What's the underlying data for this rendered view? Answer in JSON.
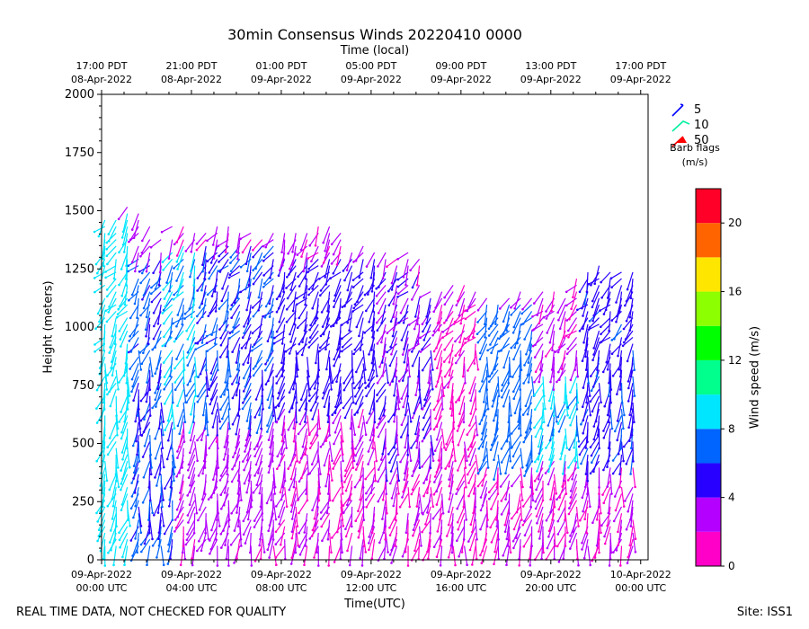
{
  "chart_data": {
    "type": "wind_barb_time_height",
    "title": "30min Consensus Winds 20220410 0000",
    "top_axis_label": "Time (local)",
    "xlabel": "Time(UTC)",
    "ylabel": "Height (meters)",
    "ylim": [
      0,
      2000
    ],
    "yticks": [
      0,
      250,
      500,
      750,
      1000,
      1250,
      1500,
      1750,
      2000
    ],
    "x_range_hours_utc": [
      0,
      24.33
    ],
    "bottom_ticks": [
      {
        "line1": "09-Apr-2022",
        "line2": "00:00 UTC",
        "hour": 0
      },
      {
        "line1": "09-Apr-2022",
        "line2": "04:00 UTC",
        "hour": 4
      },
      {
        "line1": "09-Apr-2022",
        "line2": "08:00 UTC",
        "hour": 8
      },
      {
        "line1": "09-Apr-2022",
        "line2": "12:00 UTC",
        "hour": 12
      },
      {
        "line1": "09-Apr-2022",
        "line2": "16:00 UTC",
        "hour": 16
      },
      {
        "line1": "09-Apr-2022",
        "line2": "20:00 UTC",
        "hour": 20
      },
      {
        "line1": "10-Apr-2022",
        "line2": "00:00 UTC",
        "hour": 24
      }
    ],
    "top_ticks": [
      {
        "line1": "17:00 PDT",
        "line2": "08-Apr-2022",
        "hour": 0
      },
      {
        "line1": "21:00 PDT",
        "line2": "08-Apr-2022",
        "hour": 4
      },
      {
        "line1": "01:00 PDT",
        "line2": "09-Apr-2022",
        "hour": 8
      },
      {
        "line1": "05:00 PDT",
        "line2": "09-Apr-2022",
        "hour": 12
      },
      {
        "line1": "09:00 PDT",
        "line2": "09-Apr-2022",
        "hour": 16
      },
      {
        "line1": "13:00 PDT",
        "line2": "09-Apr-2022",
        "hour": 20
      },
      {
        "line1": "17:00 PDT",
        "line2": "09-Apr-2022",
        "hour": 24
      }
    ],
    "barb_legend": {
      "entries": [
        {
          "value": "5",
          "color": "#0000ff"
        },
        {
          "value": "10",
          "color": "#00f0a0"
        },
        {
          "value": "50",
          "color": "#ff0000"
        }
      ],
      "caption_line1": "Barb flags",
      "caption_line2": "(m/s)"
    },
    "colorbar": {
      "label": "Wind speed (m/s)",
      "range": [
        0,
        22
      ],
      "ticks": [
        0,
        4,
        8,
        12,
        16,
        20
      ],
      "bins": [
        {
          "from": 0,
          "to": 2,
          "color": "#ff00c8"
        },
        {
          "from": 2,
          "to": 4,
          "color": "#b400ff"
        },
        {
          "from": 4,
          "to": 6,
          "color": "#2800ff"
        },
        {
          "from": 6,
          "to": 8,
          "color": "#0064ff"
        },
        {
          "from": 8,
          "to": 10,
          "color": "#00e6ff"
        },
        {
          "from": 10,
          "to": 12,
          "color": "#00ff8c"
        },
        {
          "from": 12,
          "to": 14,
          "color": "#00ff00"
        },
        {
          "from": 14,
          "to": 16,
          "color": "#8cff00"
        },
        {
          "from": 16,
          "to": 18,
          "color": "#ffe600"
        },
        {
          "from": 18,
          "to": 20,
          "color": "#ff6400"
        },
        {
          "from": 20,
          "to": 22,
          "color": "#ff0028"
        }
      ]
    },
    "speed_regions_m_s": [
      {
        "t0": 0.0,
        "t1": 1.6,
        "z0": 50,
        "z1": 1500,
        "speed": 9
      },
      {
        "t0": 1.6,
        "t1": 3.2,
        "z0": 50,
        "z1": 1300,
        "speed": 6
      },
      {
        "t0": 3.0,
        "t1": 4.6,
        "z0": 600,
        "z1": 1350,
        "speed": 8
      },
      {
        "t0": 4.6,
        "t1": 8.0,
        "z0": 600,
        "z1": 1350,
        "speed": 6
      },
      {
        "t0": 4.0,
        "t1": 8.0,
        "z0": 100,
        "z1": 550,
        "speed": 3
      },
      {
        "t0": 8.0,
        "t1": 12.5,
        "z0": 650,
        "z1": 1300,
        "speed": 5
      },
      {
        "t0": 8.0,
        "t1": 12.5,
        "z0": 50,
        "z1": 600,
        "speed": 2
      },
      {
        "t0": 12.5,
        "t1": 15.0,
        "z0": 200,
        "z1": 1250,
        "speed": 4
      },
      {
        "t0": 15.0,
        "t1": 17.0,
        "z0": 200,
        "z1": 1100,
        "speed": 1.5
      },
      {
        "t0": 17.0,
        "t1": 19.5,
        "z0": 400,
        "z1": 1100,
        "speed": 7
      },
      {
        "t0": 19.5,
        "t1": 21.5,
        "z0": 450,
        "z1": 800,
        "speed": 8.5
      },
      {
        "t0": 21.5,
        "t1": 24.0,
        "z0": 400,
        "z1": 1300,
        "speed": 5.5
      },
      {
        "t0": 12.0,
        "t1": 24.0,
        "z0": 0,
        "z1": 400,
        "speed": 2
      }
    ],
    "footer_left": "REAL TIME DATA, NOT CHECKED FOR QUALITY",
    "footer_right": "Site: ISS1"
  }
}
